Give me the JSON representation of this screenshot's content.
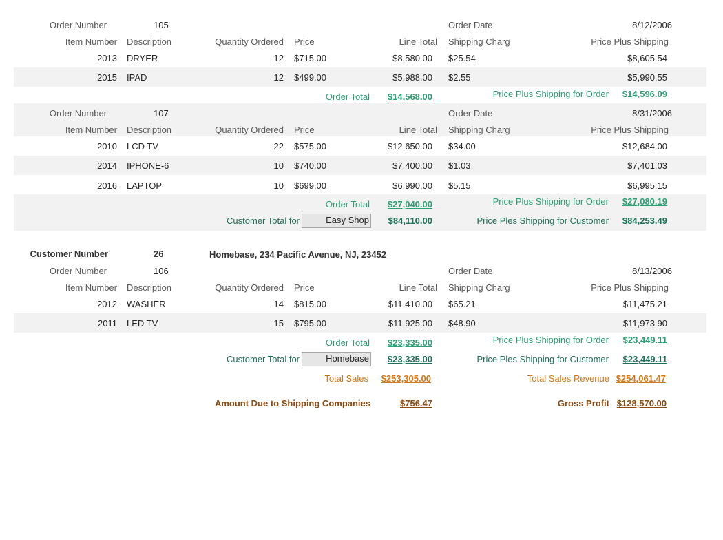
{
  "labels": {
    "order_number": "Order Number",
    "order_date": "Order Date",
    "item_number": "Item Number",
    "description": "Description",
    "quantity_ordered": "Quantity Ordered",
    "price": "Price",
    "line_total": "Line Total",
    "shipping_charge": "Shipping Charg",
    "price_plus_shipping": "Price Plus Shipping",
    "order_total": "Order Total",
    "price_plus_shipping_for_order": "Price Plus Shipping for Order",
    "customer_total_for": "Customer Total for",
    "price_ples_shipping_for_customer": "Price Ples Shipping for Customer",
    "customer_number": "Customer Number",
    "total_sales": "Total Sales",
    "total_sales_revenue": "Total Sales Revenue",
    "amount_due_shipping": "Amount Due to Shipping Companies",
    "gross_profit": "Gross Profit"
  },
  "order105": {
    "number": "105",
    "date": "8/12/2006",
    "items": [
      {
        "item": "2013",
        "desc": "DRYER",
        "qty": "12",
        "price": "$715.00",
        "line_total": "$8,580.00",
        "shipping": "$25.54",
        "pps": "$8,605.54"
      },
      {
        "item": "2015",
        "desc": "IPAD",
        "qty": "12",
        "price": "$499.00",
        "line_total": "$5,988.00",
        "shipping": "$2.55",
        "pps": "$5,990.55"
      }
    ],
    "order_total": "$14,568.00",
    "pps_order": "$14,596.09"
  },
  "order107": {
    "number": "107",
    "date": "8/31/2006",
    "items": [
      {
        "item": "2010",
        "desc": "LCD TV",
        "qty": "22",
        "price": "$575.00",
        "line_total": "$12,650.00",
        "shipping": "$34.00",
        "pps": "$12,684.00"
      },
      {
        "item": "2014",
        "desc": "IPHONE-6",
        "qty": "10",
        "price": "$740.00",
        "line_total": "$7,400.00",
        "shipping": "$1.03",
        "pps": "$7,401.03"
      },
      {
        "item": "2016",
        "desc": "LAPTOP",
        "qty": "10",
        "price": "$699.00",
        "line_total": "$6,990.00",
        "shipping": "$5.15",
        "pps": "$6,995.15"
      }
    ],
    "order_total": "$27,040.00",
    "pps_order": "$27,080.19"
  },
  "customer_easyshop": {
    "name": "Easy Shop",
    "total": "$84,110.00",
    "pps_customer": "$84,253.49"
  },
  "customer26": {
    "number": "26",
    "address": "Homebase, 234 Pacific Avenue, NJ, 23452",
    "name": "Homebase",
    "total": "$23,335.00",
    "pps_customer": "$23,449.11"
  },
  "order106": {
    "number": "106",
    "date": "8/13/2006",
    "items": [
      {
        "item": "2012",
        "desc": "WASHER",
        "qty": "14",
        "price": "$815.00",
        "line_total": "$11,410.00",
        "shipping": "$65.21",
        "pps": "$11,475.21"
      },
      {
        "item": "2011",
        "desc": "LED TV",
        "qty": "15",
        "price": "$795.00",
        "line_total": "$11,925.00",
        "shipping": "$48.90",
        "pps": "$11,973.90"
      }
    ],
    "order_total": "$23,335.00",
    "pps_order": "$23,449.11"
  },
  "summary": {
    "total_sales": "$253,305.00",
    "total_sales_revenue": "$254,061.47",
    "amount_due_shipping": "$756.47",
    "gross_profit": "$128,570.00"
  },
  "colors": {
    "band": "#f2f2f2",
    "green": "#2e9e73",
    "green_dark": "#1f6f58",
    "orange": "#d07a1e",
    "brown": "#8a4a12"
  }
}
